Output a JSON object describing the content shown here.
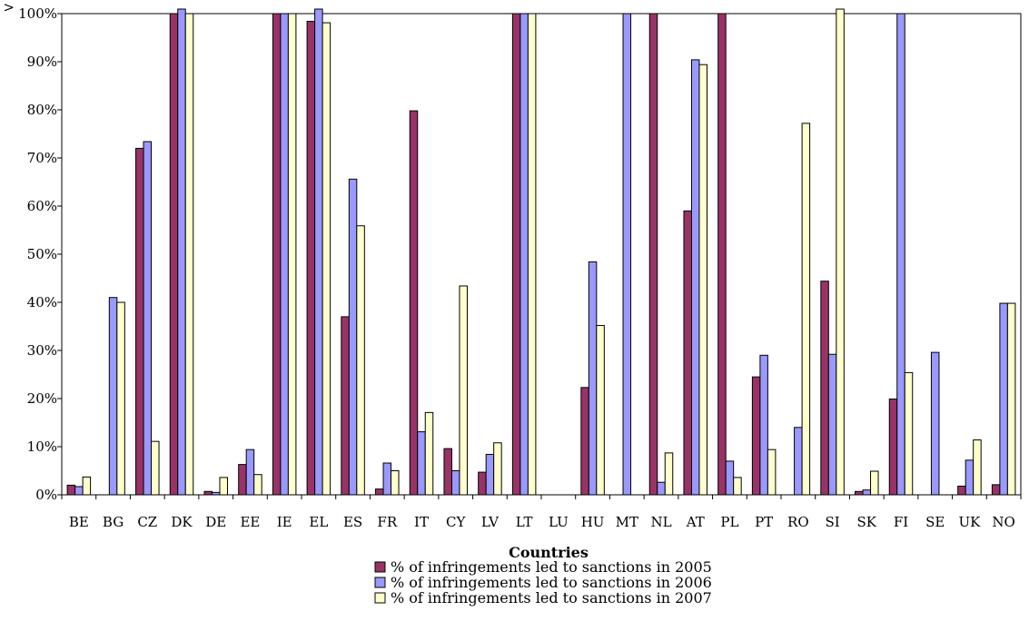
{
  "chart_data": {
    "type": "bar",
    "categories": [
      "BE",
      "BG",
      "CZ",
      "DK",
      "DE",
      "EE",
      "IE",
      "EL",
      "ES",
      "FR",
      "IT",
      "CY",
      "LV",
      "LT",
      "LU",
      "HU",
      "MT",
      "NL",
      "AT",
      "PL",
      "PT",
      "RO",
      "SI",
      "SK",
      "FI",
      "SE",
      "UK",
      "NO"
    ],
    "series": [
      {
        "name": "% of infringements led to sanctions in 2005",
        "color": "#993366",
        "values": [
          2.0,
          0,
          72.0,
          100,
          0.7,
          6.3,
          100,
          98.4,
          37.0,
          1.2,
          79.8,
          9.6,
          4.7,
          100,
          0,
          22.3,
          0,
          100,
          59.0,
          100,
          24.5,
          0,
          44.4,
          0.7,
          19.9,
          0,
          1.8,
          2.1
        ]
      },
      {
        "name": "% of infringements led to sanctions in 2006",
        "color": "#9999FF",
        "values": [
          1.7,
          41.0,
          73.4,
          100,
          0.5,
          9.4,
          100,
          100,
          65.6,
          6.6,
          13.1,
          5.0,
          8.4,
          100,
          0,
          48.4,
          100,
          2.6,
          90.4,
          7.0,
          29.0,
          14.0,
          29.2,
          1.0,
          100,
          29.6,
          7.2,
          39.8
        ]
      },
      {
        "name": "% of infringements led to sanctions in 2007",
        "color": "#FFFFCC",
        "values": [
          3.7,
          40.0,
          11.1,
          100,
          3.6,
          4.2,
          100,
          98.1,
          55.9,
          5.0,
          17.1,
          43.4,
          10.8,
          100,
          0,
          35.2,
          0,
          8.7,
          89.4,
          3.6,
          9.4,
          77.2,
          100,
          4.9,
          25.4,
          0,
          11.4,
          39.8
        ]
      }
    ],
    "overflow_bars": [
      {
        "category": "DK",
        "series": 1
      },
      {
        "category": "EL",
        "series": 1
      },
      {
        "category": "SI",
        "series": 2
      }
    ],
    "yticks": [
      "0%",
      "10%",
      "20%",
      "30%",
      "40%",
      "50%",
      "60%",
      "70%",
      "80%",
      "90%",
      "100%"
    ],
    "ytop_marker": ">",
    "ylim": [
      0,
      100
    ],
    "xlabel": "Countries",
    "ylabel": "",
    "grid": false,
    "legend_position": "bottom"
  }
}
